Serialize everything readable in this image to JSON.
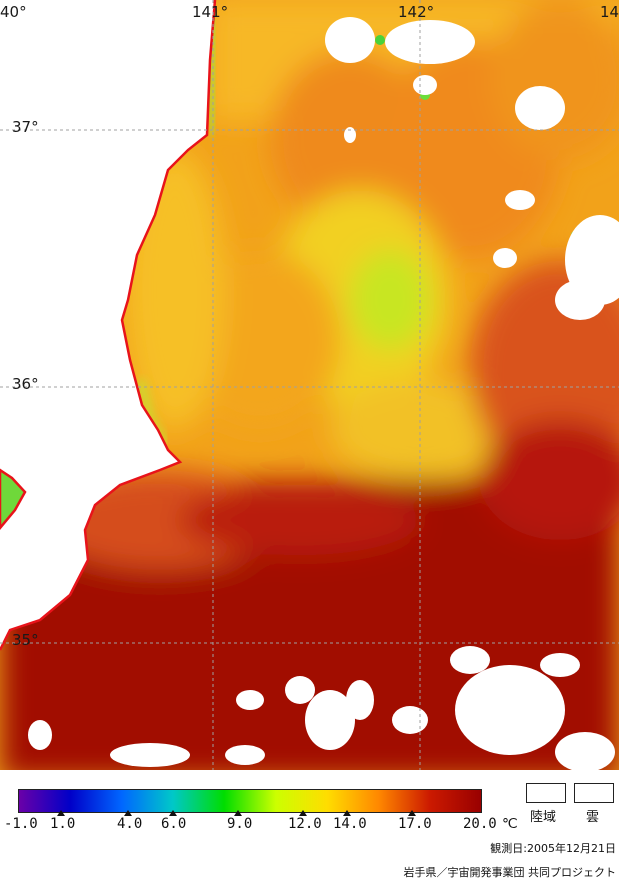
{
  "longitudes": [
    "40°",
    "141°",
    "142°",
    "14"
  ],
  "latitudes": [
    "37°",
    "36°",
    "35°"
  ],
  "legend": {
    "ticks": [
      "-1.0",
      "1.0",
      "4.0",
      "6.0",
      "9.0",
      "12.0",
      "14.0",
      "17.0",
      "20.0"
    ],
    "unit": "℃",
    "colors": [
      "#6a00a8",
      "#0000c8",
      "#0066ff",
      "#00c8c8",
      "#00dd00",
      "#ccff00",
      "#ffdd00",
      "#ff8800",
      "#cc1a00",
      "#990000"
    ]
  },
  "key": {
    "land": "陸域",
    "cloud": "雲"
  },
  "observation_date": "観測日:2005年12月21日",
  "credit": "岩手県／宇宙開発事業団 共同プロジェクト"
}
